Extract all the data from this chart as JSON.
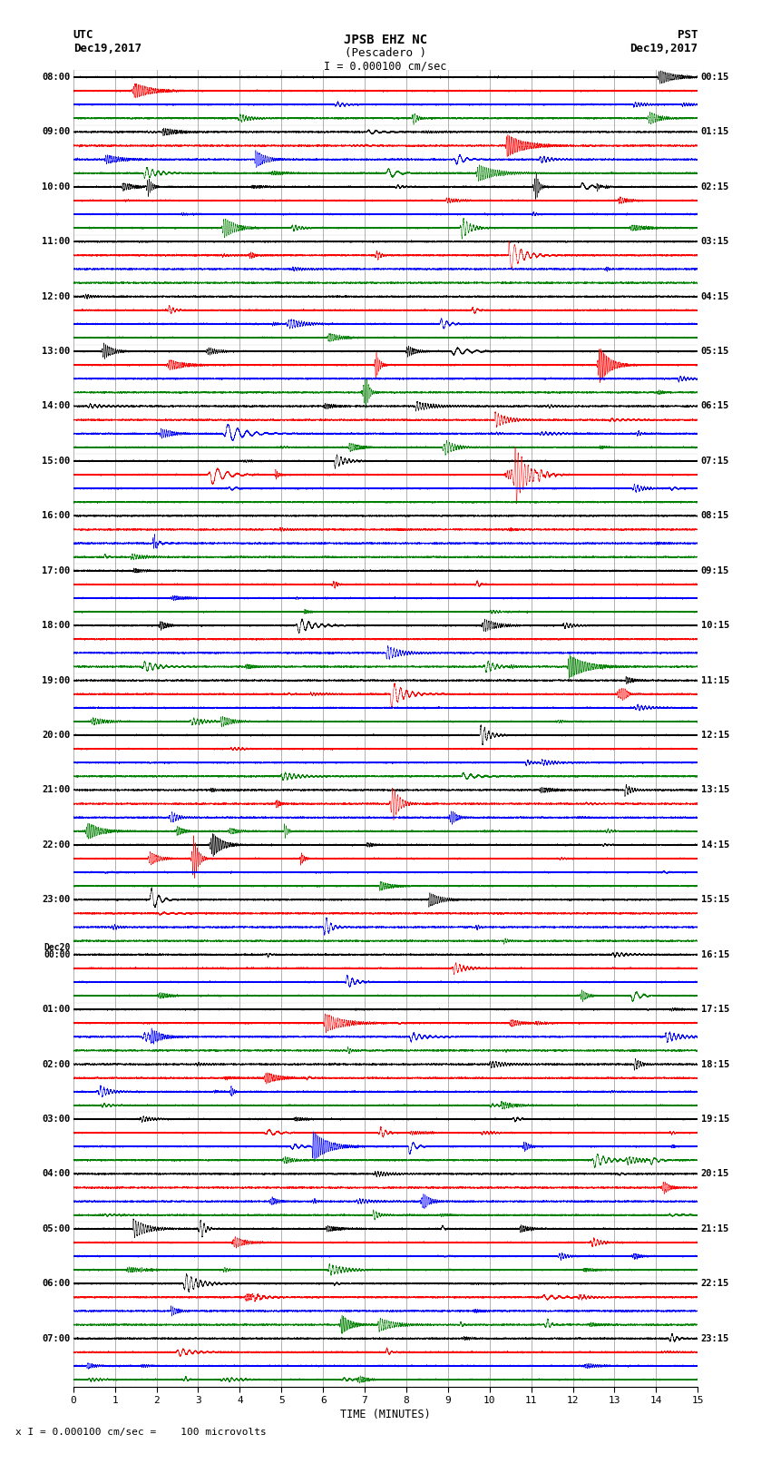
{
  "title_line1": "JPSB EHZ NC",
  "title_line2": "(Pescadero )",
  "scale_text": "I = 0.000100 cm/sec",
  "utc_label": "UTC",
  "utc_date": "Dec19,2017",
  "pst_label": "PST",
  "pst_date": "Dec19,2017",
  "xlabel": "TIME (MINUTES)",
  "footer": "x I = 0.000100 cm/sec =    100 microvolts",
  "utc_times": [
    "08:00",
    "09:00",
    "10:00",
    "11:00",
    "12:00",
    "13:00",
    "14:00",
    "15:00",
    "16:00",
    "17:00",
    "18:00",
    "19:00",
    "20:00",
    "21:00",
    "22:00",
    "23:00",
    "Dec20\n00:00",
    "01:00",
    "02:00",
    "03:00",
    "04:00",
    "05:00",
    "06:00",
    "07:00"
  ],
  "pst_times": [
    "00:15",
    "01:15",
    "02:15",
    "03:15",
    "04:15",
    "05:15",
    "06:15",
    "07:15",
    "08:15",
    "09:15",
    "10:15",
    "11:15",
    "12:15",
    "13:15",
    "14:15",
    "15:15",
    "16:15",
    "17:15",
    "18:15",
    "19:15",
    "20:15",
    "21:15",
    "22:15",
    "23:15"
  ],
  "trace_colors": [
    "black",
    "red",
    "blue",
    "green"
  ],
  "n_rows": 24,
  "traces_per_row": 4,
  "minutes": 15,
  "amplitude_scale": 0.42,
  "background_color": "white",
  "grid_color": "#777777",
  "fig_width": 8.5,
  "fig_height": 16.13
}
